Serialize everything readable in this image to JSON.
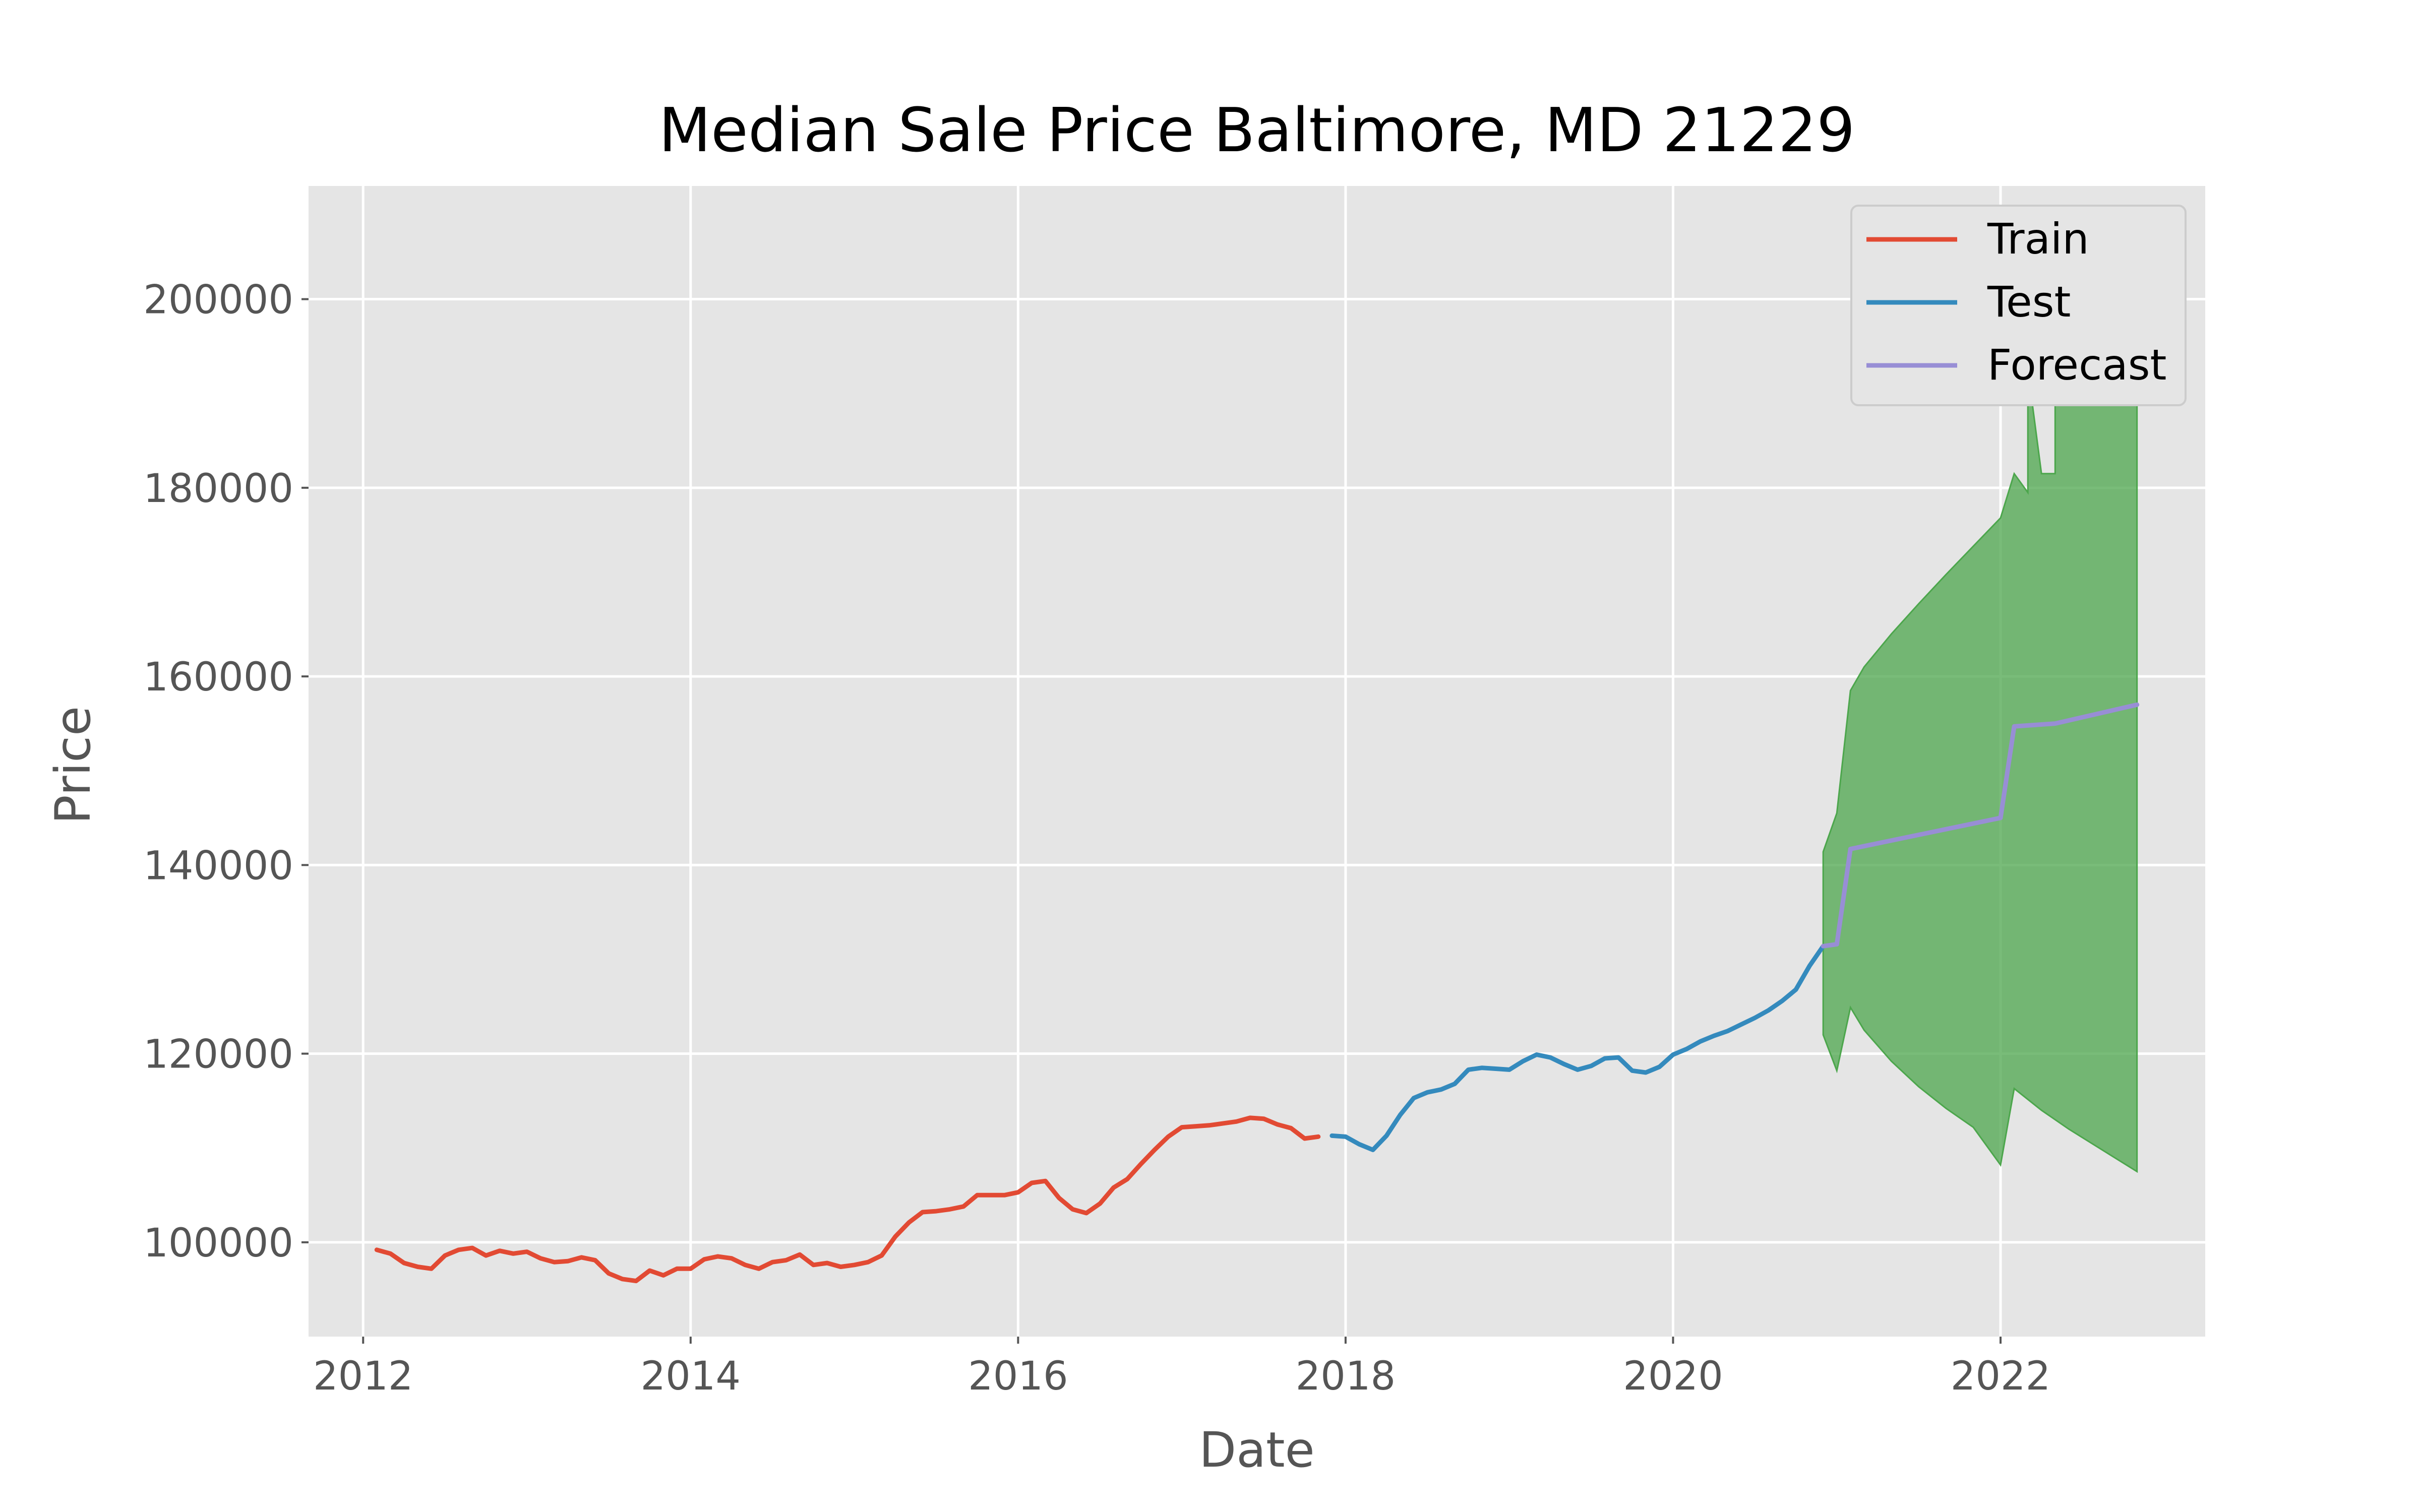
{
  "chart_data": {
    "type": "line",
    "title": "Median Sale Price Baltimore, MD 21229",
    "xlabel": "Date",
    "ylabel": "Price",
    "x_ticks": [
      "2012",
      "2014",
      "2016",
      "2018",
      "2020",
      "2022"
    ],
    "y_ticks": [
      "100000",
      "120000",
      "140000",
      "160000",
      "180000",
      "200000"
    ],
    "xlim": [
      "2011-09-01",
      "2023-04-01"
    ],
    "ylim": [
      90000,
      212000
    ],
    "grid": true,
    "legend_position": "top-right",
    "colors": {
      "background": "#E5E5E5",
      "grid": "#FFFFFF",
      "train": "#E24A33",
      "test": "#348ABD",
      "forecast": "#988ED5",
      "interval": "#4CA64C"
    },
    "series": [
      {
        "name": "Train",
        "points": [
          [
            "2012-02",
            99200
          ],
          [
            "2012-03",
            98800
          ],
          [
            "2012-04",
            97800
          ],
          [
            "2012-05",
            97400
          ],
          [
            "2012-06",
            97200
          ],
          [
            "2012-07",
            98600
          ],
          [
            "2012-08",
            99200
          ],
          [
            "2012-09",
            99400
          ],
          [
            "2012-10",
            98600
          ],
          [
            "2012-11",
            99100
          ],
          [
            "2012-12",
            98800
          ],
          [
            "2013-01",
            99000
          ],
          [
            "2013-02",
            98300
          ],
          [
            "2013-03",
            97900
          ],
          [
            "2013-04",
            98000
          ],
          [
            "2013-05",
            98400
          ],
          [
            "2013-06",
            98100
          ],
          [
            "2013-07",
            96700
          ],
          [
            "2013-08",
            96100
          ],
          [
            "2013-09",
            95900
          ],
          [
            "2013-10",
            97000
          ],
          [
            "2013-11",
            96500
          ],
          [
            "2013-12",
            97200
          ],
          [
            "2014-01",
            97200
          ],
          [
            "2014-02",
            98200
          ],
          [
            "2014-03",
            98500
          ],
          [
            "2014-04",
            98300
          ],
          [
            "2014-05",
            97600
          ],
          [
            "2014-06",
            97200
          ],
          [
            "2014-07",
            97900
          ],
          [
            "2014-08",
            98100
          ],
          [
            "2014-09",
            98700
          ],
          [
            "2014-10",
            97600
          ],
          [
            "2014-11",
            97800
          ],
          [
            "2014-12",
            97400
          ],
          [
            "2015-01",
            97600
          ],
          [
            "2015-02",
            97900
          ],
          [
            "2015-03",
            98600
          ],
          [
            "2015-04",
            100600
          ],
          [
            "2015-05",
            102100
          ],
          [
            "2015-06",
            103200
          ],
          [
            "2015-07",
            103300
          ],
          [
            "2015-08",
            103500
          ],
          [
            "2015-09",
            103800
          ],
          [
            "2015-10",
            105000
          ],
          [
            "2015-11",
            105000
          ],
          [
            "2015-12",
            105000
          ],
          [
            "2016-01",
            105300
          ],
          [
            "2016-02",
            106300
          ],
          [
            "2016-03",
            106500
          ],
          [
            "2016-04",
            104700
          ],
          [
            "2016-05",
            103500
          ],
          [
            "2016-06",
            103100
          ],
          [
            "2016-07",
            104100
          ],
          [
            "2016-08",
            105800
          ],
          [
            "2016-09",
            106700
          ],
          [
            "2016-10",
            108300
          ],
          [
            "2016-11",
            109800
          ],
          [
            "2016-12",
            111200
          ],
          [
            "2017-01",
            112200
          ],
          [
            "2017-02",
            112300
          ],
          [
            "2017-03",
            112400
          ],
          [
            "2017-04",
            112600
          ],
          [
            "2017-05",
            112800
          ],
          [
            "2017-06",
            113200
          ],
          [
            "2017-07",
            113100
          ],
          [
            "2017-08",
            112500
          ],
          [
            "2017-09",
            112100
          ],
          [
            "2017-10",
            111000
          ],
          [
            "2017-11",
            111200
          ]
        ]
      },
      {
        "name": "Test",
        "points": [
          [
            "2017-12",
            111300
          ],
          [
            "2018-01",
            111200
          ],
          [
            "2018-02",
            110400
          ],
          [
            "2018-03",
            109800
          ],
          [
            "2018-04",
            111300
          ],
          [
            "2018-05",
            113500
          ],
          [
            "2018-06",
            115300
          ],
          [
            "2018-07",
            115900
          ],
          [
            "2018-08",
            116200
          ],
          [
            "2018-09",
            116800
          ],
          [
            "2018-10",
            118300
          ],
          [
            "2018-11",
            118500
          ],
          [
            "2018-12",
            118400
          ],
          [
            "2019-01",
            118300
          ],
          [
            "2019-02",
            119200
          ],
          [
            "2019-03",
            119900
          ],
          [
            "2019-04",
            119600
          ],
          [
            "2019-05",
            118900
          ],
          [
            "2019-06",
            118300
          ],
          [
            "2019-07",
            118700
          ],
          [
            "2019-08",
            119500
          ],
          [
            "2019-09",
            119600
          ],
          [
            "2019-10",
            118200
          ],
          [
            "2019-11",
            118000
          ],
          [
            "2019-12",
            118600
          ],
          [
            "2020-01",
            119900
          ],
          [
            "2020-02",
            120500
          ],
          [
            "2020-03",
            121300
          ],
          [
            "2020-04",
            121900
          ],
          [
            "2020-05",
            122400
          ],
          [
            "2020-06",
            123100
          ],
          [
            "2020-07",
            123800
          ],
          [
            "2020-08",
            124600
          ],
          [
            "2020-09",
            125600
          ],
          [
            "2020-10",
            126800
          ],
          [
            "2020-11",
            129300
          ],
          [
            "2020-12",
            131400
          ]
        ]
      },
      {
        "name": "Forecast",
        "points": [
          [
            "2020-12",
            131400
          ],
          [
            "2021-01",
            131600
          ],
          [
            "2021-02",
            141700
          ],
          [
            "2021-12",
            144700
          ],
          [
            "2022-01",
            145000
          ],
          [
            "2022-02",
            154700
          ],
          [
            "2022-05",
            155000
          ],
          [
            "2022-11",
            157000
          ]
        ]
      }
    ],
    "interval": {
      "upper": [
        [
          "2020-12",
          141400
        ],
        [
          "2021-01",
          145500
        ],
        [
          "2021-02",
          158500
        ],
        [
          "2021-03",
          161000
        ],
        [
          "2021-05",
          164500
        ],
        [
          "2021-07",
          167700
        ],
        [
          "2021-09",
          170800
        ],
        [
          "2021-11",
          173800
        ],
        [
          "2022-01",
          176800
        ],
        [
          "2022-03",
          179500
        ],
        [
          "2022-04",
          181500
        ],
        [
          "2022-05",
          181500
        ],
        [
          "2022-02",
          181500
        ],
        [
          "2022-03",
          192500
        ],
        [
          "2022-05",
          196000
        ],
        [
          "2022-08",
          200000
        ],
        [
          "2022-11",
          206500
        ]
      ],
      "lower": [
        [
          "2020-12",
          122000
        ],
        [
          "2021-01",
          118200
        ],
        [
          "2021-02",
          124900
        ],
        [
          "2021-03",
          122500
        ],
        [
          "2021-05",
          119200
        ],
        [
          "2021-07",
          116500
        ],
        [
          "2021-09",
          114200
        ],
        [
          "2021-11",
          112200
        ],
        [
          "2022-01",
          108200
        ],
        [
          "2022-02",
          116300
        ],
        [
          "2022-04",
          114000
        ],
        [
          "2022-06",
          112000
        ],
        [
          "2022-08",
          110200
        ],
        [
          "2022-11",
          107500
        ]
      ]
    }
  }
}
